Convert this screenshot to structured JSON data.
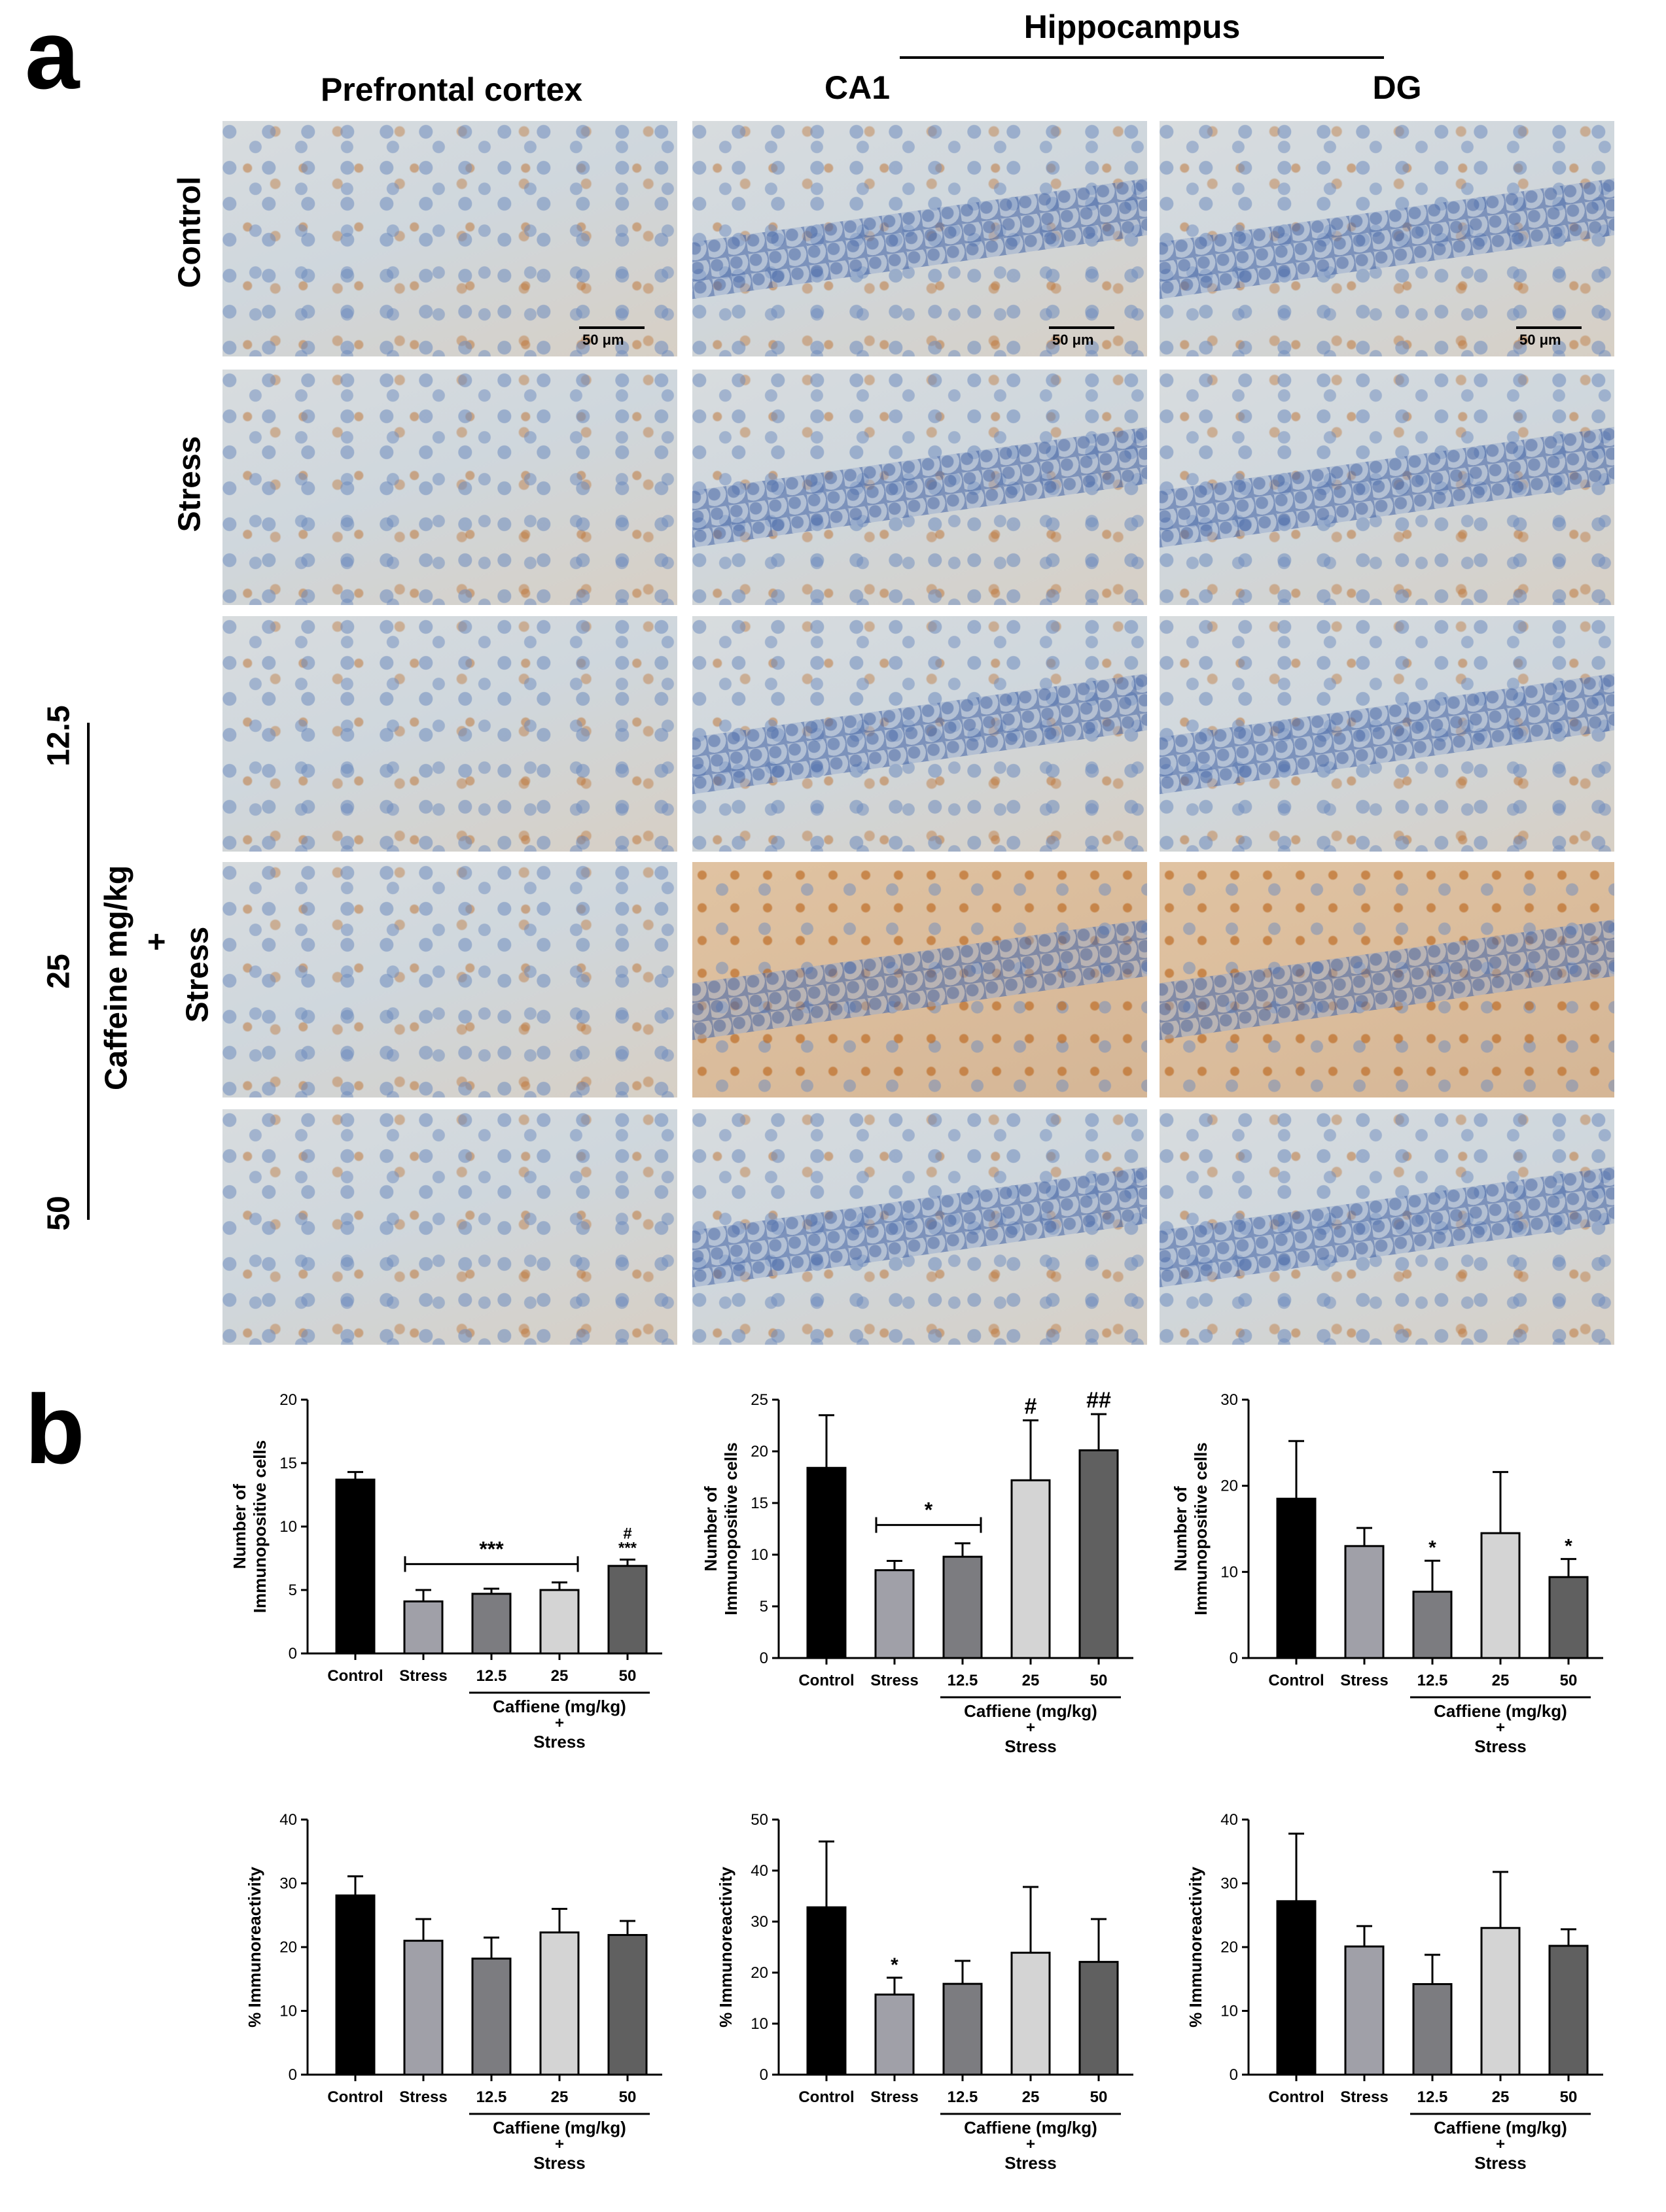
{
  "panel_a": {
    "letter": "a",
    "columns": {
      "prefrontal": "Prefrontal cortex",
      "hippocampus": "Hippocampus",
      "ca1": "CA1",
      "dg": "DG"
    },
    "rows": {
      "control": "Control",
      "stress": "Stress",
      "dose_12_5": "12.5",
      "dose_25": "25",
      "dose_50": "50",
      "caffeine_group": "Caffeine mg/kg",
      "plus": "+",
      "stress2": "Stress"
    },
    "scale_bar": "50 μm"
  },
  "panel_b": {
    "letter": "b",
    "group_caption": [
      "Caffiene (mg/kg)",
      "+",
      "Stress"
    ]
  },
  "chart_data": [
    {
      "type": "bar",
      "ylabel": "Number of Immunopositive cells",
      "categories": [
        "Control",
        "Stress",
        "12.5",
        "25",
        "50"
      ],
      "values": [
        13.7,
        4.1,
        4.7,
        5.0,
        6.9
      ],
      "errors": [
        0.6,
        0.9,
        0.4,
        0.6,
        0.5
      ],
      "colors": [
        "#000000",
        "#a0a0a8",
        "#7c7c80",
        "#d4d4d4",
        "#606060"
      ],
      "ylim": [
        0,
        20
      ],
      "yticks": [
        0,
        5,
        10,
        15,
        20
      ],
      "bracket": {
        "from": 1,
        "to": 3,
        "label": "***"
      },
      "annotations": [
        {
          "index": 4,
          "lines": [
            "#",
            "***"
          ]
        }
      ]
    },
    {
      "type": "bar",
      "ylabel": "Number of Immunopositive cells",
      "categories": [
        "Control",
        "Stress",
        "12.5",
        "25",
        "50"
      ],
      "values": [
        18.4,
        8.5,
        9.8,
        17.2,
        20.1
      ],
      "errors": [
        5.1,
        0.9,
        1.3,
        5.8,
        3.5
      ],
      "colors": [
        "#000000",
        "#a0a0a8",
        "#7c7c80",
        "#d4d4d4",
        "#606060"
      ],
      "ylim": [
        0,
        25
      ],
      "yticks": [
        0,
        5,
        10,
        15,
        20,
        25
      ],
      "bracket": {
        "from": 1,
        "to": 2,
        "label": "*"
      },
      "annotations": [
        {
          "index": 3,
          "lines": [
            "#"
          ]
        },
        {
          "index": 4,
          "lines": [
            "##"
          ]
        }
      ]
    },
    {
      "type": "bar",
      "ylabel": "Number of Immunopositive cells",
      "categories": [
        "Control",
        "Stress",
        "12.5",
        "25",
        "50"
      ],
      "values": [
        18.5,
        13.0,
        7.7,
        14.5,
        9.4
      ],
      "errors": [
        6.7,
        2.1,
        3.6,
        7.1,
        2.1
      ],
      "colors": [
        "#000000",
        "#a0a0a8",
        "#7c7c80",
        "#d4d4d4",
        "#606060"
      ],
      "ylim": [
        0,
        30
      ],
      "yticks": [
        0,
        10,
        20,
        30
      ],
      "annotations": [
        {
          "index": 2,
          "lines": [
            "*"
          ]
        },
        {
          "index": 4,
          "lines": [
            "*"
          ]
        }
      ]
    },
    {
      "type": "bar",
      "ylabel": "% Immunoreactivity",
      "categories": [
        "Control",
        "Stress",
        "12.5",
        "25",
        "50"
      ],
      "values": [
        28.1,
        21.0,
        18.2,
        22.3,
        21.9
      ],
      "errors": [
        3.0,
        3.4,
        3.3,
        3.7,
        2.2
      ],
      "colors": [
        "#000000",
        "#a0a0a8",
        "#7c7c80",
        "#d4d4d4",
        "#606060"
      ],
      "ylim": [
        0,
        40
      ],
      "yticks": [
        0,
        10,
        20,
        30,
        40
      ],
      "annotations": []
    },
    {
      "type": "bar",
      "ylabel": "% Immunoreactivity",
      "categories": [
        "Control",
        "Stress",
        "12.5",
        "25",
        "50"
      ],
      "values": [
        32.8,
        15.7,
        17.8,
        23.9,
        22.1
      ],
      "errors": [
        12.9,
        3.3,
        4.5,
        12.9,
        8.4
      ],
      "colors": [
        "#000000",
        "#a0a0a8",
        "#7c7c80",
        "#d4d4d4",
        "#606060"
      ],
      "ylim": [
        0,
        50
      ],
      "yticks": [
        0,
        10,
        20,
        30,
        40,
        50
      ],
      "annotations": [
        {
          "index": 1,
          "lines": [
            "*"
          ]
        }
      ]
    },
    {
      "type": "bar",
      "ylabel": "% Immunoreactivity",
      "categories": [
        "Control",
        "Stress",
        "12.5",
        "25",
        "50"
      ],
      "values": [
        27.2,
        20.1,
        14.2,
        23.0,
        20.2
      ],
      "errors": [
        10.6,
        3.2,
        4.6,
        8.8,
        2.6
      ],
      "colors": [
        "#000000",
        "#a0a0a8",
        "#7c7c80",
        "#d4d4d4",
        "#606060"
      ],
      "ylim": [
        0,
        40
      ],
      "yticks": [
        0,
        10,
        20,
        30,
        40
      ],
      "annotations": []
    }
  ]
}
